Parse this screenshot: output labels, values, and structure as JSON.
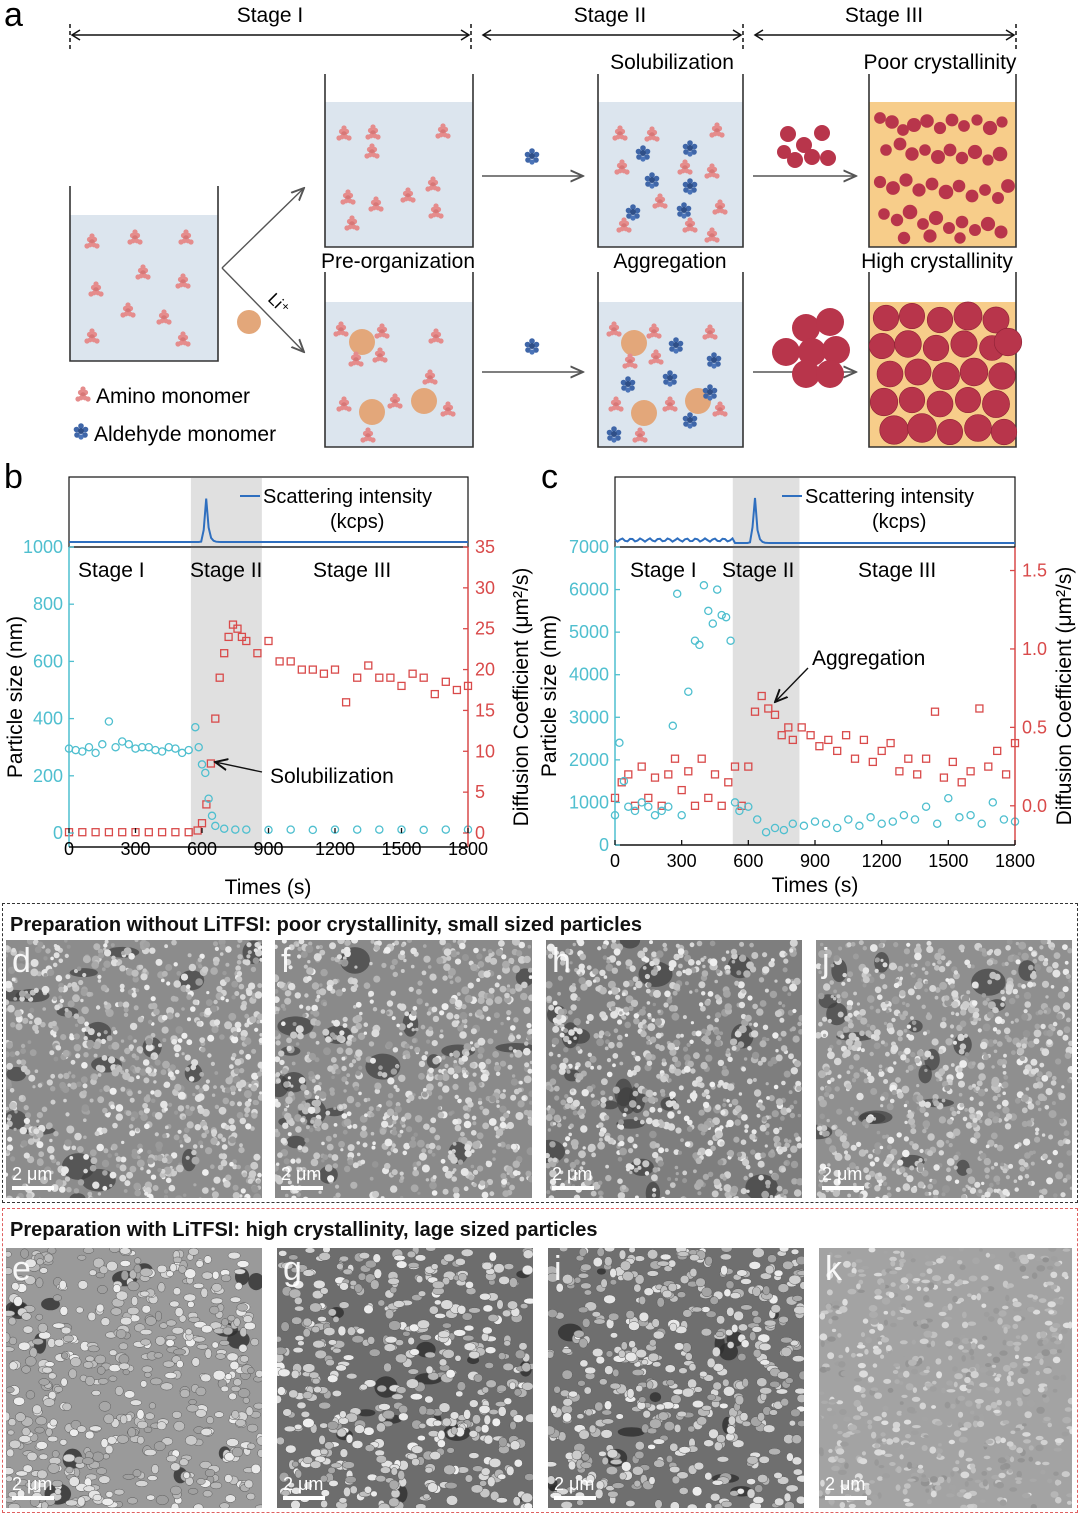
{
  "panel_letters": {
    "a": "a",
    "b": "b",
    "c": "c"
  },
  "schematic": {
    "stage_labels": [
      "Stage I",
      "Stage II",
      "Stage III"
    ],
    "solubilization": "Solubilization",
    "poor_crystallinity": "Poor crystallinity",
    "pre_organization": "Pre-organization",
    "aggregation": "Aggregation",
    "high_crystallinity": "High crystallinity",
    "li_label": "Li⁺",
    "legend_amino": "Amino monomer",
    "legend_aldehyde": "Aldehyde monomer",
    "colors": {
      "solution": "#dce5ee",
      "amino": "#e58c8c",
      "aldehyde": "#3f66a8",
      "li": "#e3a77a",
      "product_bg": "#f7cd8a",
      "product": "#b8354b"
    }
  },
  "chart_data": [
    {
      "type": "scatter",
      "panel": "b",
      "xlabel": "Times (s)",
      "ylabel": "Particle size (nm)",
      "y2label": "Diffusion Coefficient (μm²/s)",
      "xlim": [
        0,
        1800
      ],
      "ylim": [
        0,
        1000
      ],
      "y2lim": [
        0,
        35
      ],
      "xticks": [
        "0",
        "300",
        "600",
        "900",
        "1200",
        "1500",
        "1800"
      ],
      "yticks": [
        "0",
        "200",
        "400",
        "600",
        "800",
        "1000"
      ],
      "y2ticks": [
        "0",
        "5",
        "10",
        "15",
        "20",
        "25",
        "30",
        "35"
      ],
      "stage_labels": [
        "Stage I",
        "Stage II",
        "Stage III"
      ],
      "stage2_range": [
        550,
        870
      ],
      "inset_legend": [
        "Scattering intensity",
        "(kcps)"
      ],
      "inset_peak_x": 620,
      "annotation": "Solubilization",
      "series": [
        {
          "name": "Particle size",
          "axis": "left",
          "color": "#4fbfcf",
          "x": [
            0,
            30,
            60,
            90,
            120,
            150,
            180,
            210,
            240,
            270,
            300,
            330,
            360,
            390,
            420,
            450,
            480,
            510,
            540,
            570,
            585,
            600,
            615,
            630,
            645,
            660,
            700,
            750,
            800,
            900,
            1000,
            1100,
            1200,
            1300,
            1400,
            1500,
            1600,
            1700,
            1800
          ],
          "y": [
            295,
            290,
            285,
            300,
            280,
            310,
            390,
            300,
            320,
            310,
            295,
            300,
            300,
            290,
            285,
            300,
            295,
            280,
            290,
            370,
            300,
            240,
            210,
            120,
            60,
            25,
            15,
            12,
            12,
            11,
            12,
            11,
            12,
            12,
            12,
            12,
            11,
            12,
            12
          ]
        },
        {
          "name": "Diffusion coefficient",
          "axis": "right",
          "color": "#d94a4a",
          "x": [
            0,
            60,
            120,
            180,
            240,
            300,
            360,
            420,
            480,
            540,
            580,
            600,
            620,
            640,
            660,
            680,
            700,
            720,
            740,
            760,
            780,
            800,
            850,
            900,
            950,
            1000,
            1050,
            1100,
            1150,
            1200,
            1250,
            1300,
            1350,
            1400,
            1450,
            1500,
            1550,
            1600,
            1650,
            1700,
            1750,
            1800
          ],
          "y": [
            0.1,
            0.1,
            0.1,
            0.1,
            0.1,
            0.1,
            0.1,
            0.1,
            0.1,
            0.1,
            0.3,
            1.2,
            3.5,
            8.5,
            14,
            19,
            22,
            24,
            25.5,
            25,
            24,
            23.5,
            22,
            23.5,
            21,
            21,
            20,
            20,
            19.5,
            20,
            16,
            19,
            20.5,
            19,
            19,
            18,
            19.5,
            19,
            17,
            18.5,
            17.5,
            18
          ]
        }
      ]
    },
    {
      "type": "scatter",
      "panel": "c",
      "xlabel": "Times (s)",
      "ylabel": "Particle size (nm)",
      "y2label": "Diffusion Coefficient (μm²/s)",
      "xlim": [
        0,
        1800
      ],
      "ylim": [
        0,
        7000
      ],
      "y2lim": [
        -0.25,
        1.65
      ],
      "xticks": [
        "0",
        "300",
        "600",
        "900",
        "1200",
        "1500",
        "1800"
      ],
      "yticks": [
        "0",
        "1000",
        "2000",
        "3000",
        "4000",
        "5000",
        "6000",
        "7000"
      ],
      "y2ticks": [
        "0.0",
        "0.5",
        "1.0",
        "1.5"
      ],
      "stage_labels": [
        "Stage I",
        "Stage II",
        "Stage III"
      ],
      "stage2_range": [
        530,
        830
      ],
      "inset_legend": [
        "Scattering intensity",
        "(kcps)"
      ],
      "inset_peak_x": 630,
      "annotation": "Aggregation",
      "series": [
        {
          "name": "Particle size",
          "axis": "left",
          "color": "#4fbfcf",
          "x": [
            0,
            20,
            40,
            60,
            90,
            120,
            150,
            180,
            210,
            240,
            260,
            280,
            300,
            330,
            360,
            380,
            400,
            420,
            440,
            460,
            480,
            500,
            520,
            540,
            560,
            600,
            640,
            680,
            720,
            760,
            800,
            850,
            900,
            950,
            1000,
            1050,
            1100,
            1150,
            1200,
            1250,
            1300,
            1350,
            1400,
            1450,
            1500,
            1550,
            1600,
            1650,
            1700,
            1750,
            1800
          ],
          "y": [
            700,
            2400,
            1500,
            900,
            800,
            1000,
            900,
            700,
            800,
            900,
            2800,
            5900,
            700,
            3600,
            4800,
            4700,
            6100,
            5500,
            5200,
            6000,
            5400,
            5350,
            4800,
            1000,
            800,
            900,
            600,
            300,
            400,
            350,
            500,
            450,
            550,
            500,
            400,
            600,
            450,
            650,
            500,
            550,
            700,
            600,
            900,
            500,
            1100,
            650,
            700,
            500,
            1000,
            600,
            550
          ]
        },
        {
          "name": "Diffusion coefficient",
          "axis": "right",
          "color": "#d94a4a",
          "x": [
            0,
            30,
            60,
            90,
            120,
            150,
            180,
            210,
            240,
            270,
            300,
            330,
            360,
            390,
            420,
            450,
            480,
            510,
            540,
            570,
            600,
            630,
            660,
            690,
            720,
            750,
            780,
            800,
            840,
            880,
            920,
            960,
            1000,
            1040,
            1080,
            1120,
            1160,
            1200,
            1240,
            1280,
            1320,
            1360,
            1400,
            1440,
            1480,
            1520,
            1560,
            1600,
            1640,
            1680,
            1720,
            1760,
            1800
          ],
          "y": [
            0.05,
            0.15,
            0.2,
            0.0,
            0.25,
            0.05,
            0.18,
            0.0,
            0.2,
            0.3,
            0.1,
            0.22,
            0.0,
            0.3,
            0.05,
            0.2,
            0.0,
            0.15,
            0.25,
            0.0,
            0.25,
            0.6,
            0.7,
            0.62,
            0.58,
            0.45,
            0.5,
            0.42,
            0.5,
            0.45,
            0.38,
            0.42,
            0.35,
            0.45,
            0.3,
            0.42,
            0.28,
            0.35,
            0.4,
            0.22,
            0.3,
            0.2,
            0.3,
            0.6,
            0.18,
            0.28,
            0.15,
            0.22,
            0.62,
            0.25,
            0.35,
            0.2,
            0.4
          ]
        }
      ]
    }
  ],
  "sem": {
    "top_title": "Preparation without LiTFSI: poor crystallinity, small sized particles",
    "bottom_title": "Preparation with LiTFSI: high crystallinity, lage sized particles",
    "top_letters": [
      "d",
      "f",
      "h",
      "j"
    ],
    "bottom_letters": [
      "e",
      "g",
      "i",
      "k"
    ],
    "scale": "2 μm",
    "colors": {
      "top_border": "#333333",
      "bottom_border": "#e06060"
    }
  }
}
